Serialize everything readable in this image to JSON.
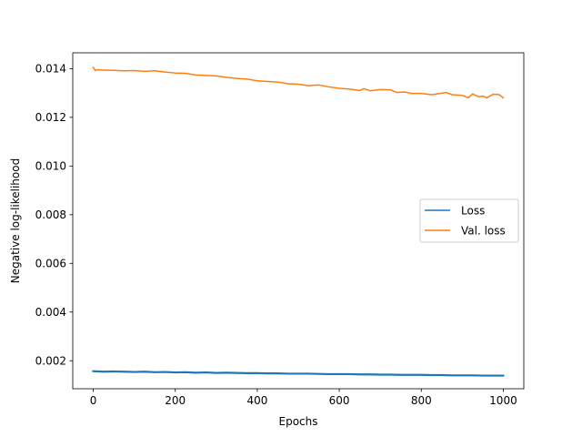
{
  "chart_data": {
    "type": "line",
    "title": "",
    "xlabel": "Epochs",
    "ylabel": "Negative log-likelihood",
    "xlim": [
      -50,
      1050
    ],
    "ylim": [
      0.00085,
      0.01465
    ],
    "xticks": [
      0,
      200,
      400,
      600,
      800,
      1000
    ],
    "xtick_labels": [
      "0",
      "200",
      "400",
      "600",
      "800",
      "1000"
    ],
    "yticks": [
      0.002,
      0.004,
      0.006,
      0.008,
      0.01,
      0.012,
      0.014
    ],
    "ytick_labels": [
      "0.002",
      "0.004",
      "0.006",
      "0.008",
      "0.010",
      "0.012",
      "0.014"
    ],
    "grid": false,
    "legend_position": "center-right",
    "series": [
      {
        "name": "Loss",
        "color": "#1f77b4",
        "x": [
          0,
          25,
          50,
          75,
          100,
          125,
          150,
          175,
          200,
          225,
          250,
          275,
          300,
          325,
          350,
          375,
          400,
          425,
          450,
          475,
          500,
          525,
          550,
          575,
          600,
          625,
          650,
          675,
          700,
          725,
          750,
          775,
          800,
          825,
          850,
          875,
          900,
          925,
          950,
          975,
          1000
        ],
        "y": [
          0.00157,
          0.00155,
          0.00156,
          0.00155,
          0.00154,
          0.00155,
          0.00153,
          0.00154,
          0.00152,
          0.00153,
          0.00151,
          0.00152,
          0.0015,
          0.00151,
          0.0015,
          0.00149,
          0.00149,
          0.00148,
          0.00148,
          0.00147,
          0.00147,
          0.00147,
          0.00146,
          0.00145,
          0.00145,
          0.00145,
          0.00144,
          0.00144,
          0.00143,
          0.00143,
          0.00142,
          0.00142,
          0.00142,
          0.00141,
          0.00141,
          0.0014,
          0.0014,
          0.0014,
          0.00139,
          0.00139,
          0.00139
        ]
      },
      {
        "name": "Val. loss",
        "color": "#ff7f0e",
        "x": [
          0,
          5,
          10,
          25,
          50,
          75,
          100,
          125,
          150,
          175,
          200,
          225,
          250,
          275,
          300,
          325,
          350,
          375,
          400,
          425,
          450,
          475,
          500,
          525,
          550,
          575,
          600,
          625,
          650,
          660,
          675,
          700,
          725,
          740,
          760,
          775,
          800,
          825,
          850,
          860,
          875,
          900,
          915,
          925,
          940,
          950,
          960,
          975,
          990,
          1000
        ],
        "y": [
          0.01405,
          0.01392,
          0.01395,
          0.01394,
          0.01393,
          0.01391,
          0.01392,
          0.01389,
          0.01391,
          0.01386,
          0.01382,
          0.01381,
          0.01374,
          0.01372,
          0.0137,
          0.01364,
          0.0136,
          0.01357,
          0.0135,
          0.01347,
          0.01345,
          0.01338,
          0.01336,
          0.0133,
          0.01333,
          0.01325,
          0.01319,
          0.01316,
          0.0131,
          0.01318,
          0.01309,
          0.01314,
          0.01313,
          0.01302,
          0.01304,
          0.01298,
          0.01298,
          0.01293,
          0.01299,
          0.01302,
          0.01293,
          0.0129,
          0.0128,
          0.01296,
          0.01285,
          0.01287,
          0.0128,
          0.01295,
          0.01293,
          0.0128
        ]
      }
    ]
  }
}
